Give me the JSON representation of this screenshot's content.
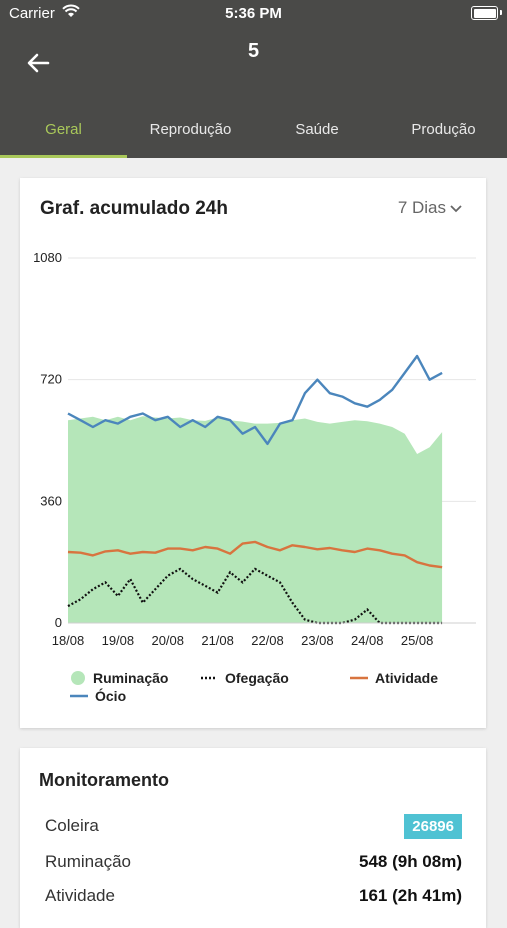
{
  "status_bar": {
    "carrier": "Carrier",
    "time": "5:36 PM"
  },
  "header": {
    "title": "5"
  },
  "tabs": [
    {
      "label": "Geral",
      "active": true
    },
    {
      "label": "Reprodução",
      "active": false
    },
    {
      "label": "Saúde",
      "active": false
    },
    {
      "label": "Produção",
      "active": false
    }
  ],
  "chart_card": {
    "title": "Graf. acumulado 24h",
    "range_selector": "7 Dias"
  },
  "chart_data": {
    "type": "area",
    "ylim": [
      0,
      1080
    ],
    "y_ticks": [
      "0",
      "360",
      "720",
      "1080"
    ],
    "x_ticks": [
      "18/08",
      "19/08",
      "20/08",
      "21/08",
      "22/08",
      "23/08",
      "24/08",
      "25/08"
    ],
    "grid": true,
    "legend_placement": "bottom",
    "x_days": [
      0,
      0.25,
      0.5,
      0.75,
      1,
      1.25,
      1.5,
      1.75,
      2,
      2.25,
      2.5,
      2.75,
      3,
      3.25,
      3.5,
      3.75,
      4,
      4.25,
      4.5,
      4.75,
      5,
      5.25,
      5.5,
      5.75,
      6,
      6.25,
      6.5,
      6.75,
      7,
      7.25,
      7.5
    ],
    "series": [
      {
        "name": "Ruminação",
        "style": "area",
        "color": "#b5e6b9",
        "values": [
          600,
          605,
          610,
          600,
          610,
          600,
          612,
          608,
          605,
          608,
          600,
          598,
          608,
          600,
          596,
          590,
          590,
          592,
          600,
          605,
          595,
          590,
          595,
          600,
          597,
          590,
          580,
          560,
          500,
          520,
          565
        ]
      },
      {
        "name": "Ofegação",
        "style": "dotted",
        "color": "#111111",
        "values": [
          50,
          70,
          100,
          120,
          80,
          130,
          60,
          100,
          140,
          160,
          130,
          110,
          90,
          150,
          120,
          160,
          140,
          120,
          60,
          10,
          0,
          0,
          0,
          10,
          40,
          0,
          0,
          0,
          0,
          0,
          0
        ]
      },
      {
        "name": "Atividade",
        "style": "line",
        "color": "#d8743f",
        "values": [
          210,
          208,
          200,
          212,
          215,
          205,
          210,
          208,
          220,
          220,
          215,
          225,
          220,
          205,
          235,
          240,
          225,
          215,
          230,
          225,
          218,
          222,
          215,
          210,
          220,
          215,
          205,
          200,
          180,
          170,
          165
        ]
      },
      {
        "name": "Ócio",
        "style": "line",
        "color": "#4b86bc",
        "values": [
          620,
          600,
          580,
          600,
          590,
          610,
          620,
          600,
          610,
          580,
          600,
          580,
          610,
          600,
          560,
          580,
          530,
          590,
          600,
          680,
          720,
          680,
          670,
          650,
          640,
          660,
          690,
          740,
          790,
          720,
          740
        ]
      }
    ]
  },
  "monitoring": {
    "title": "Monitoramento",
    "rows": [
      {
        "label": "Coleira",
        "value": "26896",
        "badge": true
      },
      {
        "label": "Ruminação",
        "value": "548 (9h 08m)"
      },
      {
        "label": "Atividade",
        "value": "161 (2h 41m)"
      }
    ]
  },
  "colors": {
    "header_bg": "#4a4a48",
    "tab_active": "#a9c85a",
    "badge_bg": "#4fc2d3"
  }
}
